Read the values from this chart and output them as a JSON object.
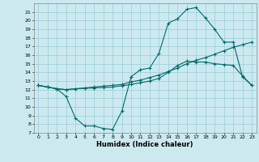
{
  "xlabel": "Humidex (Indice chaleur)",
  "bg_color": "#cce9f0",
  "grid_color": "#99ccd9",
  "line_color": "#006b6b",
  "xlim": [
    -0.5,
    23.5
  ],
  "ylim": [
    7,
    22
  ],
  "xticks": [
    0,
    1,
    2,
    3,
    4,
    5,
    6,
    7,
    8,
    9,
    10,
    11,
    12,
    13,
    14,
    15,
    16,
    17,
    18,
    19,
    20,
    21,
    22,
    23
  ],
  "yticks": [
    7,
    8,
    9,
    10,
    11,
    12,
    13,
    14,
    15,
    16,
    17,
    18,
    19,
    20,
    21
  ],
  "line1_x": [
    0,
    1,
    2,
    3,
    4,
    5,
    6,
    7,
    8,
    9,
    10,
    11,
    12,
    13,
    14,
    15,
    16,
    17,
    18,
    19,
    20,
    21,
    22,
    23
  ],
  "line1_y": [
    12.5,
    12.3,
    12.1,
    11.2,
    8.7,
    7.8,
    7.8,
    7.5,
    7.4,
    9.5,
    13.5,
    14.3,
    14.5,
    16.2,
    19.7,
    20.2,
    21.3,
    21.5,
    20.3,
    19.0,
    17.5,
    17.5,
    13.5,
    12.5
  ],
  "line2_x": [
    0,
    1,
    2,
    3,
    4,
    5,
    6,
    7,
    8,
    9,
    10,
    11,
    12,
    13,
    14,
    15,
    16,
    17,
    18,
    19,
    20,
    21,
    22,
    23
  ],
  "line2_y": [
    12.5,
    12.3,
    12.1,
    12.0,
    12.1,
    12.2,
    12.3,
    12.4,
    12.5,
    12.6,
    12.9,
    13.1,
    13.4,
    13.7,
    14.1,
    14.5,
    15.0,
    15.4,
    15.7,
    16.1,
    16.5,
    16.9,
    17.2,
    17.5
  ],
  "line3_x": [
    0,
    1,
    2,
    3,
    4,
    5,
    6,
    7,
    8,
    9,
    10,
    11,
    12,
    13,
    14,
    15,
    16,
    17,
    18,
    19,
    20,
    21,
    22,
    23
  ],
  "line3_y": [
    12.5,
    12.3,
    12.1,
    12.0,
    12.1,
    12.15,
    12.2,
    12.25,
    12.3,
    12.45,
    12.6,
    12.8,
    13.0,
    13.3,
    14.0,
    14.8,
    15.3,
    15.2,
    15.2,
    15.0,
    14.9,
    14.8,
    13.6,
    12.5
  ]
}
